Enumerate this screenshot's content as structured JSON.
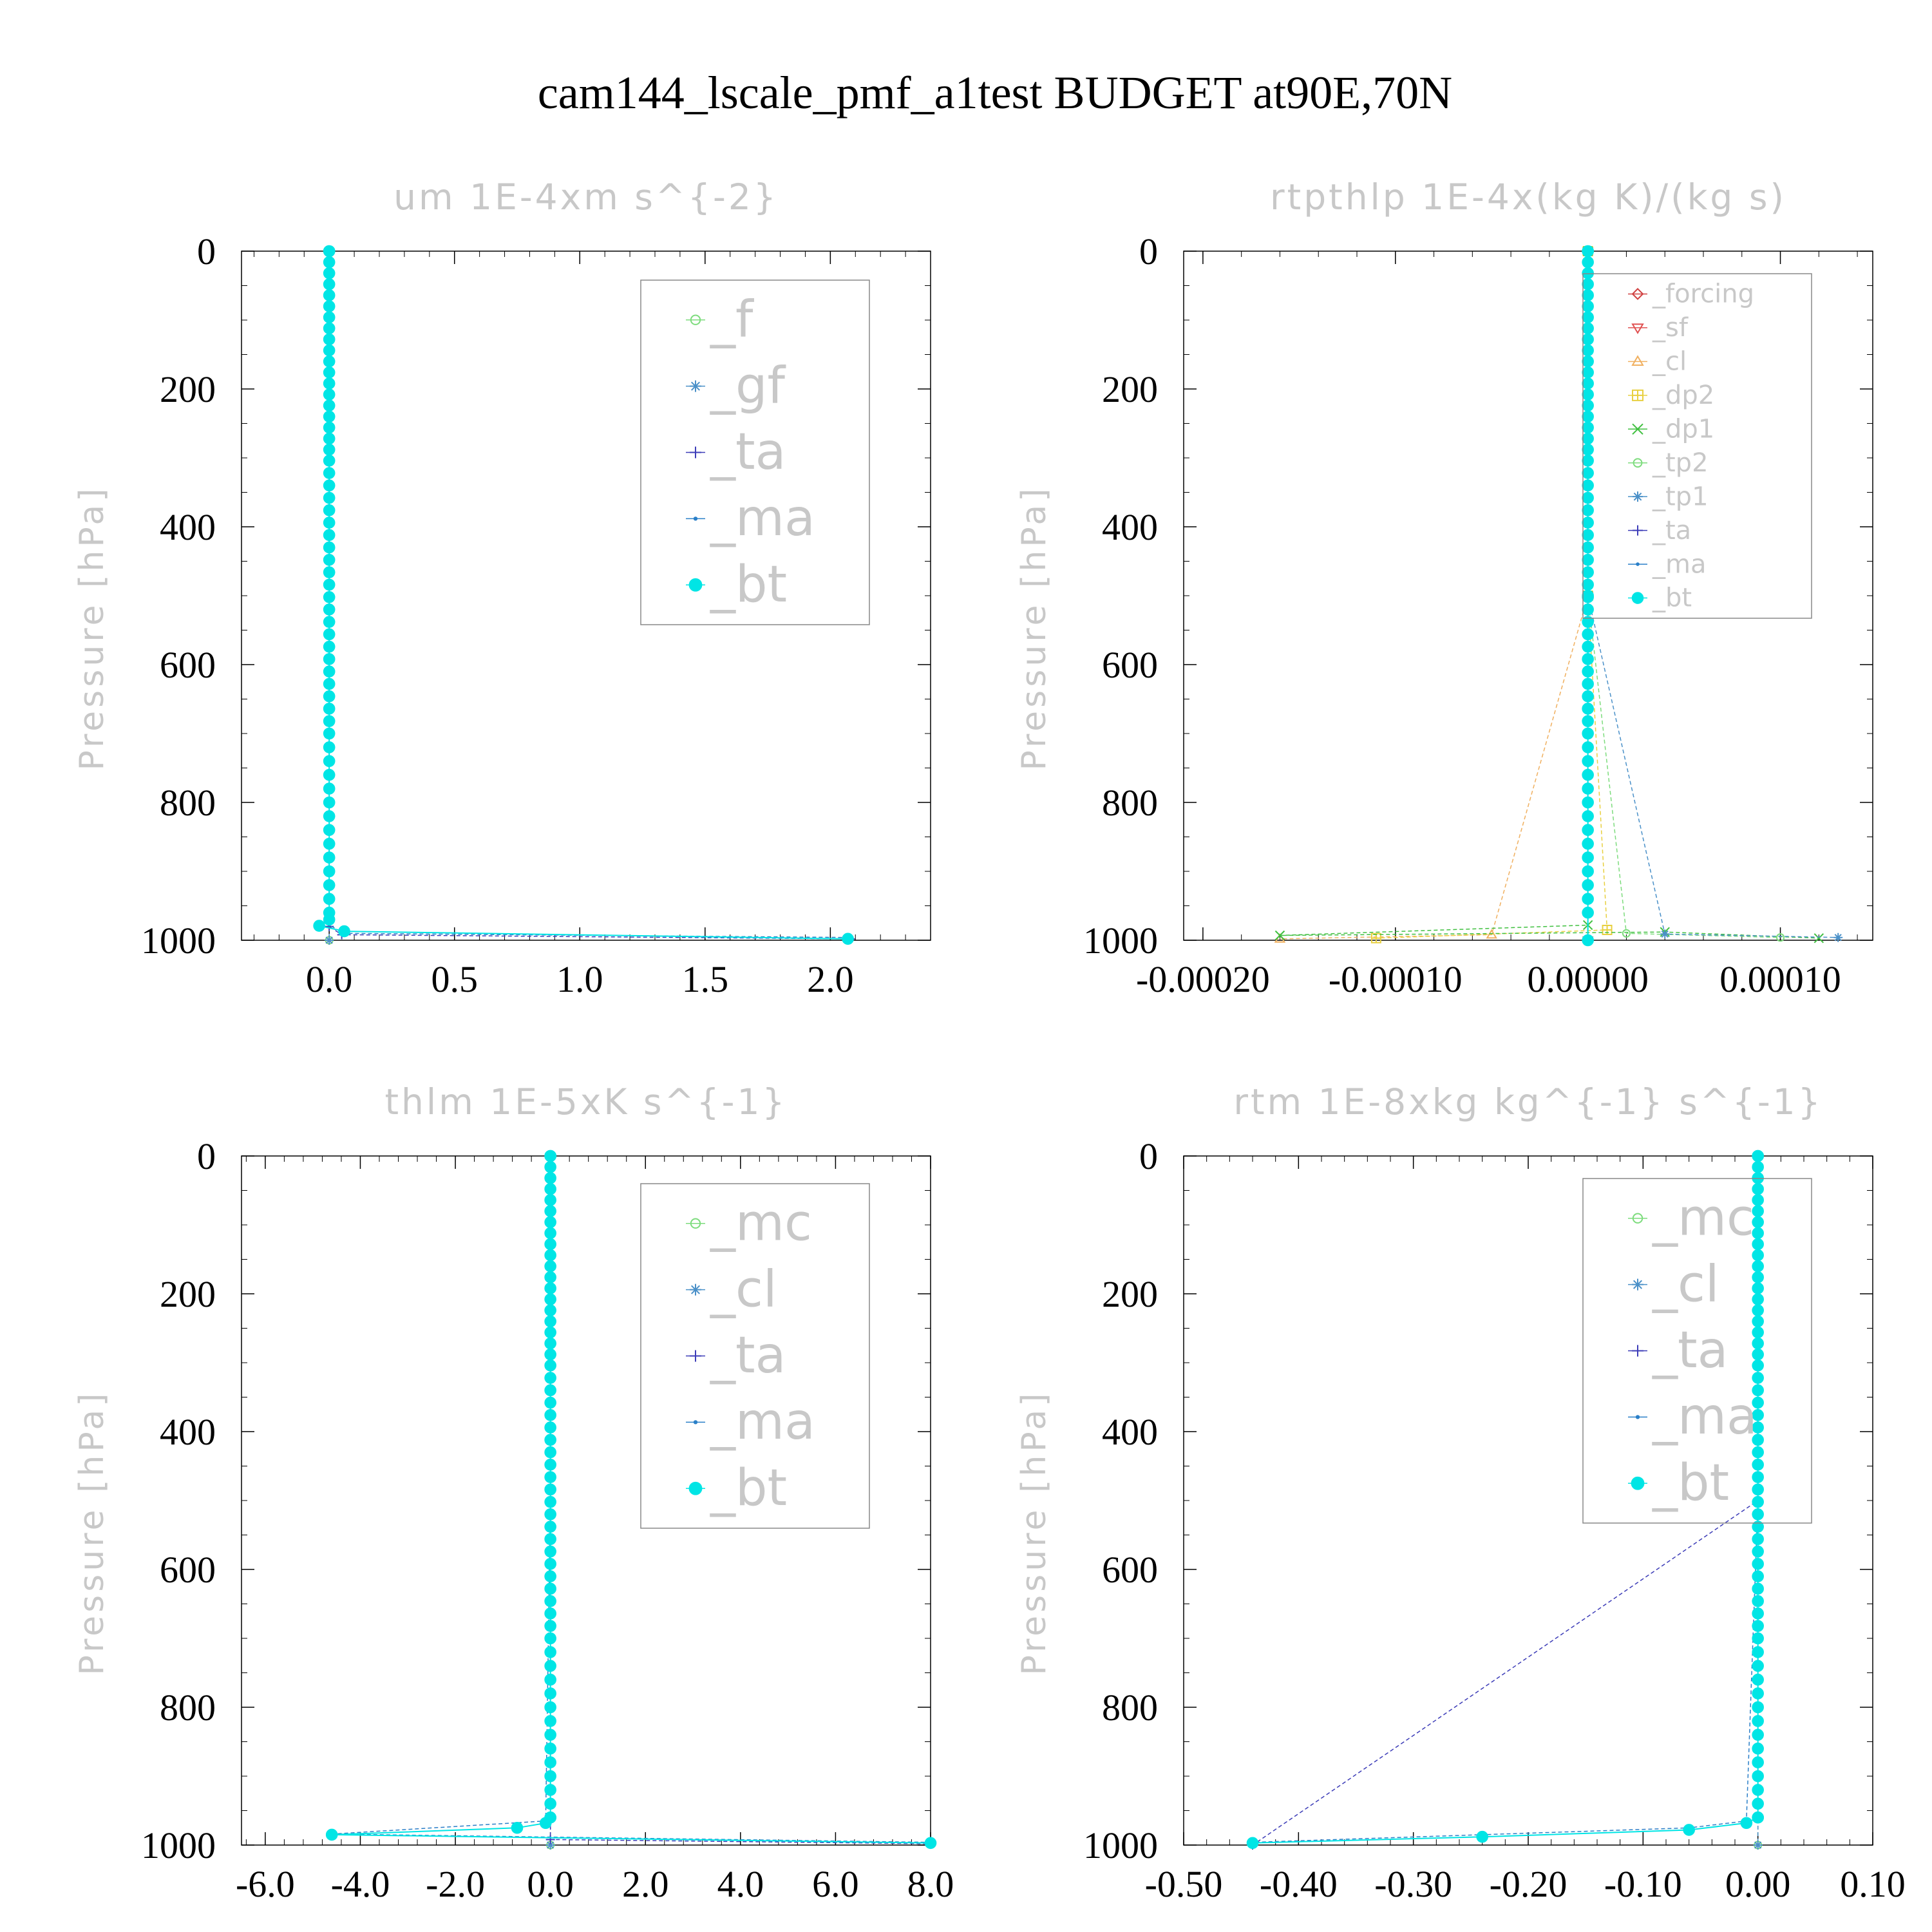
{
  "figure_title": "cam144_lscale_pmf_a1test  BUDGET at90E,70N",
  "chart_data": [
    {
      "type": "line",
      "title": "um  1E-4xm s^{-2}",
      "ylabel": "Pressure [hPa]",
      "xlim": [
        -0.35,
        2.4
      ],
      "ylim": [
        1000,
        0
      ],
      "xticks": [
        0.0,
        0.5,
        1.0,
        1.5,
        2.0
      ],
      "xtick_labels": [
        "0.0",
        "0.5",
        "1.0",
        "1.5",
        "2.0"
      ],
      "yticks": [
        0,
        200,
        400,
        600,
        800,
        1000
      ],
      "ytick_labels": [
        "0",
        "200",
        "400",
        "600",
        "800",
        "1000"
      ],
      "legend_position": "top-right",
      "series": [
        {
          "name": "_f",
          "color": "#7ddc7d",
          "marker": "circle-open",
          "x": [
            0,
            0,
            0
          ],
          "y": [
            0,
            500,
            1000
          ]
        },
        {
          "name": "_gf",
          "color": "#4a90c8",
          "marker": "asterisk",
          "x": [
            0,
            0,
            0
          ],
          "y": [
            0,
            500,
            1000
          ]
        },
        {
          "name": "_ta",
          "color": "#3d3db8",
          "marker": "plus",
          "x": [
            0,
            0,
            0,
            0.05,
            2.08
          ],
          "y": [
            0,
            500,
            980,
            992,
            998
          ]
        },
        {
          "name": "_ma",
          "color": "#2a7fc8",
          "marker": "dot",
          "x": [
            0,
            0,
            0,
            0.06,
            2.07
          ],
          "y": [
            0,
            500,
            978,
            990,
            996
          ]
        },
        {
          "name": "_bt",
          "color": "#00e5e5",
          "marker": "circle-filled",
          "x": [
            0,
            0,
            -0.04,
            0.06,
            2.07
          ],
          "y": [
            0,
            970,
            979,
            987,
            998
          ]
        }
      ]
    },
    {
      "type": "line",
      "title": "rtpthlp  1E-4x(kg K)/(kg s)",
      "ylabel": "Pressure [hPa]",
      "xlim": [
        -0.00021,
        0.000148
      ],
      "ylim": [
        1000,
        0
      ],
      "xticks": [
        -0.0002,
        -0.0001,
        0.0,
        0.0001
      ],
      "xtick_labels": [
        "-0.00020",
        "-0.00010",
        "0.00000",
        "0.00010"
      ],
      "yticks": [
        0,
        200,
        400,
        600,
        800,
        1000
      ],
      "ytick_labels": [
        "0",
        "200",
        "400",
        "600",
        "800",
        "1000"
      ],
      "legend_position": "top-right",
      "series": [
        {
          "name": "_forcing",
          "color": "#d04040",
          "marker": "diamond",
          "x": [
            0,
            0,
            0
          ],
          "y": [
            0,
            500,
            1000
          ]
        },
        {
          "name": "_sf",
          "color": "#e05050",
          "marker": "triangle-down",
          "x": [
            0,
            0,
            0
          ],
          "y": [
            0,
            500,
            1000
          ]
        },
        {
          "name": "_cl",
          "color": "#f0b060",
          "marker": "triangle-up",
          "x": [
            0,
            0,
            -5e-05,
            -0.00016
          ],
          "y": [
            0,
            500,
            992,
            998
          ]
        },
        {
          "name": "_dp2",
          "color": "#e8d040",
          "marker": "box-plus",
          "x": [
            0,
            0,
            1e-05,
            -0.00011
          ],
          "y": [
            0,
            500,
            985,
            997
          ]
        },
        {
          "name": "_dp1",
          "color": "#40c040",
          "marker": "cross",
          "x": [
            0,
            0,
            0,
            -0.00016,
            4e-05,
            0.00012
          ],
          "y": [
            0,
            500,
            978,
            993,
            988,
            997
          ]
        },
        {
          "name": "_tp2",
          "color": "#7ddc7d",
          "marker": "circle-open",
          "x": [
            0,
            0,
            2e-05,
            0.0001
          ],
          "y": [
            0,
            500,
            990,
            996
          ]
        },
        {
          "name": "_tp1",
          "color": "#4a90c8",
          "marker": "asterisk",
          "x": [
            0,
            0,
            4e-05,
            0.00013
          ],
          "y": [
            0,
            500,
            991,
            996
          ]
        },
        {
          "name": "_ta",
          "color": "#3d3db8",
          "marker": "plus",
          "x": [
            0,
            0,
            0
          ],
          "y": [
            0,
            500,
            1000
          ]
        },
        {
          "name": "_ma",
          "color": "#2a7fc8",
          "marker": "dot",
          "x": [
            0,
            0,
            0
          ],
          "y": [
            0,
            500,
            1000
          ]
        },
        {
          "name": "_bt",
          "color": "#00e5e5",
          "marker": "circle-filled",
          "x": [
            0,
            0,
            0
          ],
          "y": [
            0,
            500,
            1000
          ]
        }
      ]
    },
    {
      "type": "line",
      "title": "thlm  1E-5xK s^{-1}",
      "ylabel": "Pressure [hPa]",
      "xlim": [
        -6.5,
        8.0
      ],
      "ylim": [
        1000,
        0
      ],
      "xticks": [
        -6.0,
        -4.0,
        -2.0,
        0.0,
        2.0,
        4.0,
        6.0,
        8.0
      ],
      "xtick_labels": [
        "-6.0",
        "-4.0",
        "-2.0",
        "0.0",
        "2.0",
        "4.0",
        "6.0",
        "8.0"
      ],
      "yticks": [
        0,
        200,
        400,
        600,
        800,
        1000
      ],
      "ytick_labels": [
        "0",
        "200",
        "400",
        "600",
        "800",
        "1000"
      ],
      "legend_position": "top-right",
      "series": [
        {
          "name": "_mc",
          "color": "#7ddc7d",
          "marker": "circle-open",
          "x": [
            0,
            0,
            0
          ],
          "y": [
            0,
            500,
            1000
          ]
        },
        {
          "name": "_cl",
          "color": "#4a90c8",
          "marker": "asterisk",
          "x": [
            0,
            0,
            0
          ],
          "y": [
            0,
            500,
            1000
          ]
        },
        {
          "name": "_ta",
          "color": "#3d3db8",
          "marker": "plus",
          "x": [
            0,
            0,
            0,
            8.0
          ],
          "y": [
            0,
            500,
            992,
            998
          ]
        },
        {
          "name": "_ma",
          "color": "#2a7fc8",
          "marker": "dot",
          "x": [
            0,
            0,
            -0.1,
            -4.6,
            8.0
          ],
          "y": [
            0,
            500,
            965,
            984,
            996
          ]
        },
        {
          "name": "_bt",
          "color": "#00e5e5",
          "marker": "circle-filled",
          "x": [
            0,
            0,
            -0.1,
            -0.7,
            -4.6,
            8.0
          ],
          "y": [
            0,
            960,
            968,
            975,
            985,
            997
          ]
        }
      ]
    },
    {
      "type": "line",
      "title": "rtm  1E-8xkg kg^{-1} s^{-1}",
      "ylabel": "Pressure [hPa]",
      "xlim": [
        -0.5,
        0.1
      ],
      "ylim": [
        1000,
        0
      ],
      "xticks": [
        -0.5,
        -0.4,
        -0.3,
        -0.2,
        -0.1,
        0.0,
        0.1
      ],
      "xtick_labels": [
        "-0.50",
        "-0.40",
        "-0.30",
        "-0.20",
        "-0.10",
        "0.00",
        "0.10"
      ],
      "yticks": [
        0,
        200,
        400,
        600,
        800,
        1000
      ],
      "ytick_labels": [
        "0",
        "200",
        "400",
        "600",
        "800",
        "1000"
      ],
      "legend_position": "top-right",
      "series": [
        {
          "name": "_mc",
          "color": "#7ddc7d",
          "marker": "circle-open",
          "x": [
            0,
            0,
            0
          ],
          "y": [
            0,
            500,
            1000
          ]
        },
        {
          "name": "_cl",
          "color": "#4a90c8",
          "marker": "asterisk",
          "x": [
            0,
            0,
            0
          ],
          "y": [
            0,
            500,
            1000
          ]
        },
        {
          "name": "_ta",
          "color": "#3d3db8",
          "marker": "plus",
          "x": [
            0,
            0,
            -0.44
          ],
          "y": [
            0,
            500,
            1000
          ]
        },
        {
          "name": "_ma",
          "color": "#2a7fc8",
          "marker": "dot",
          "x": [
            0,
            0,
            -0.01,
            -0.06,
            -0.24,
            -0.44
          ],
          "y": [
            0,
            500,
            965,
            975,
            985,
            996
          ]
        },
        {
          "name": "_bt",
          "color": "#00e5e5",
          "marker": "circle-filled",
          "x": [
            0,
            0,
            -0.01,
            -0.06,
            -0.24,
            -0.44
          ],
          "y": [
            0,
            960,
            968,
            978,
            988,
            997
          ]
        }
      ]
    }
  ]
}
